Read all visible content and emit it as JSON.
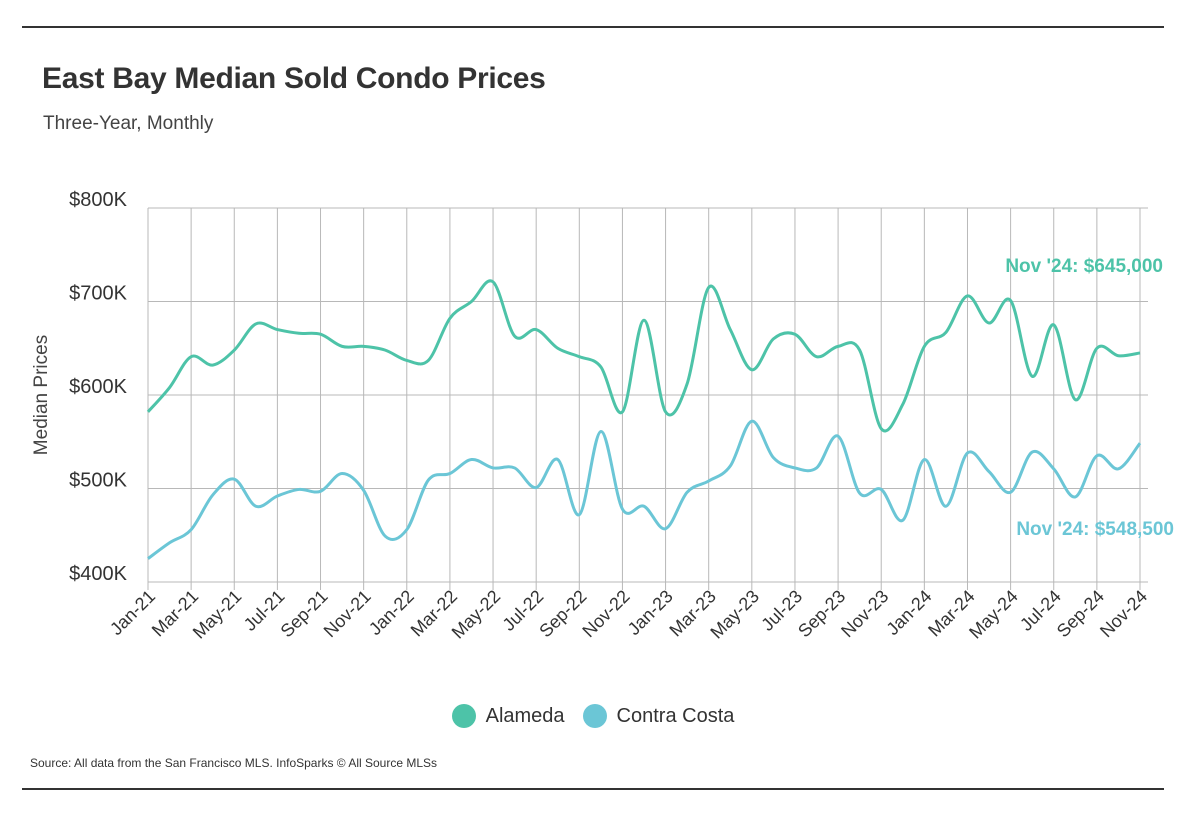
{
  "header": {
    "title": "East Bay Median Sold Condo Prices",
    "subtitle": "Three-Year, Monthly"
  },
  "footer": {
    "source": "Source:  All data from the San Francisco MLS. InfoSparks © All Source MLSs"
  },
  "colors": {
    "alameda": "#4DC3A8",
    "contra_costa": "#6BC6D6",
    "grid": "#b8b8b8",
    "text": "#333333"
  },
  "chart_data": {
    "type": "line",
    "ylabel": "Median Prices",
    "xlabel": "",
    "ylim": [
      400000,
      800000
    ],
    "yticks": [
      400000,
      500000,
      600000,
      700000,
      800000
    ],
    "ytick_labels": [
      "$400K",
      "$500K",
      "$600K",
      "$700K",
      "$800K"
    ],
    "grid": true,
    "legend_position": "bottom",
    "x": [
      "Jan-21",
      "Feb-21",
      "Mar-21",
      "Apr-21",
      "May-21",
      "Jun-21",
      "Jul-21",
      "Aug-21",
      "Sep-21",
      "Oct-21",
      "Nov-21",
      "Dec-21",
      "Jan-22",
      "Feb-22",
      "Mar-22",
      "Apr-22",
      "May-22",
      "Jun-22",
      "Jul-22",
      "Aug-22",
      "Sep-22",
      "Oct-22",
      "Nov-22",
      "Dec-22",
      "Jan-23",
      "Feb-23",
      "Mar-23",
      "Apr-23",
      "May-23",
      "Jun-23",
      "Jul-23",
      "Aug-23",
      "Sep-23",
      "Oct-23",
      "Nov-23",
      "Dec-23",
      "Jan-24",
      "Feb-24",
      "Mar-24",
      "Apr-24",
      "May-24",
      "Jun-24",
      "Jul-24",
      "Aug-24",
      "Sep-24",
      "Oct-24",
      "Nov-24"
    ],
    "xtick_labels": [
      "Jan-21",
      "Mar-21",
      "May-21",
      "Jul-21",
      "Sep-21",
      "Nov-21",
      "Jan-22",
      "Mar-22",
      "May-22",
      "Jul-22",
      "Sep-22",
      "Nov-22",
      "Jan-23",
      "Mar-23",
      "May-23",
      "Jul-23",
      "Sep-23",
      "Nov-23",
      "Jan-24",
      "Mar-24",
      "May-24",
      "Jul-24",
      "Sep-24",
      "Nov-24"
    ],
    "series": [
      {
        "name": "Alameda",
        "values": [
          582000,
          608000,
          641000,
          632000,
          648000,
          676000,
          670000,
          666000,
          665000,
          652000,
          652000,
          648000,
          637000,
          637000,
          682000,
          700000,
          721000,
          663000,
          670000,
          650000,
          641000,
          630000,
          582000,
          680000,
          582000,
          612000,
          715000,
          670000,
          627000,
          660000,
          665000,
          641000,
          652000,
          648000,
          564000,
          590000,
          652000,
          667000,
          706000,
          677000,
          701000,
          620000,
          675000,
          595000,
          650000,
          642000,
          645000
        ]
      },
      {
        "name": "Contra Costa",
        "values": [
          425000,
          442000,
          456000,
          493000,
          510000,
          481000,
          492000,
          499000,
          497000,
          516000,
          498000,
          449000,
          456000,
          509000,
          516000,
          531000,
          522000,
          522000,
          501000,
          531000,
          472000,
          561000,
          478000,
          481000,
          457000,
          496000,
          508000,
          524000,
          572000,
          533000,
          522000,
          522000,
          556000,
          495000,
          499000,
          466000,
          531000,
          481000,
          538000,
          518000,
          496000,
          539000,
          521000,
          491000,
          535000,
          521000,
          548500
        ]
      }
    ],
    "annotations": [
      {
        "series": "Alameda",
        "x": "Nov-24",
        "text": "Nov '24: $645,000"
      },
      {
        "series": "Contra Costa",
        "x": "Nov-24",
        "text": "Nov '24: $548,500"
      }
    ]
  }
}
